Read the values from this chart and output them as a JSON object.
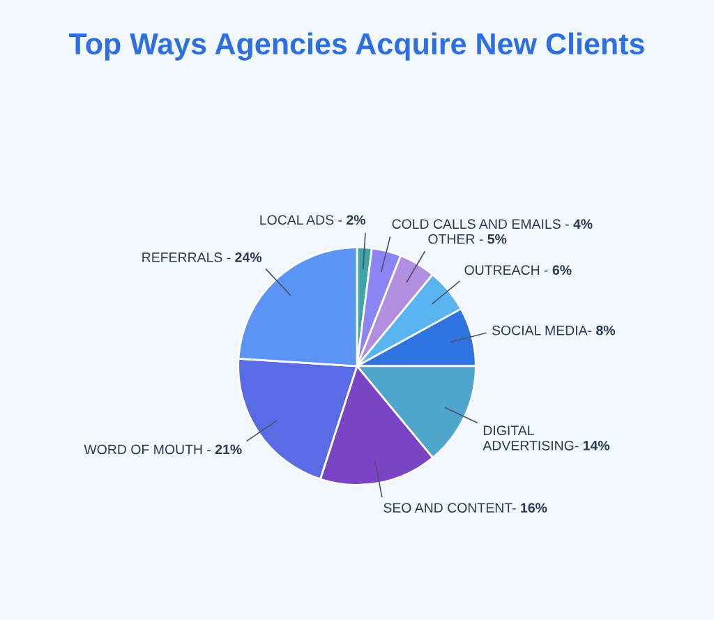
{
  "chart_data": {
    "type": "pie",
    "title": "Top Ways Agencies Acquire New Clients",
    "categories": [
      "LOCAL ADS - ",
      "COLD CALLS AND EMAILS - ",
      "OTHER - ",
      "OUTREACH - ",
      "SOCIAL MEDIA- ",
      "DIGITAL\nADVERTISING- ",
      "SEO AND CONTENT- ",
      "WORD OF MOUTH - ",
      "REFERRALS - "
    ],
    "values": [
      2,
      4,
      5,
      6,
      8,
      14,
      16,
      21,
      24
    ],
    "value_labels": [
      "2%",
      "4%",
      "5%",
      "6%",
      "8%",
      "14%",
      "16%",
      "21%",
      "24%"
    ],
    "colors": [
      "#3fa3a8",
      "#8b84f5",
      "#b08fe0",
      "#5ab4f2",
      "#2f73e0",
      "#4ea6cc",
      "#7a45c4",
      "#5a6be6",
      "#5b94f5"
    ]
  }
}
